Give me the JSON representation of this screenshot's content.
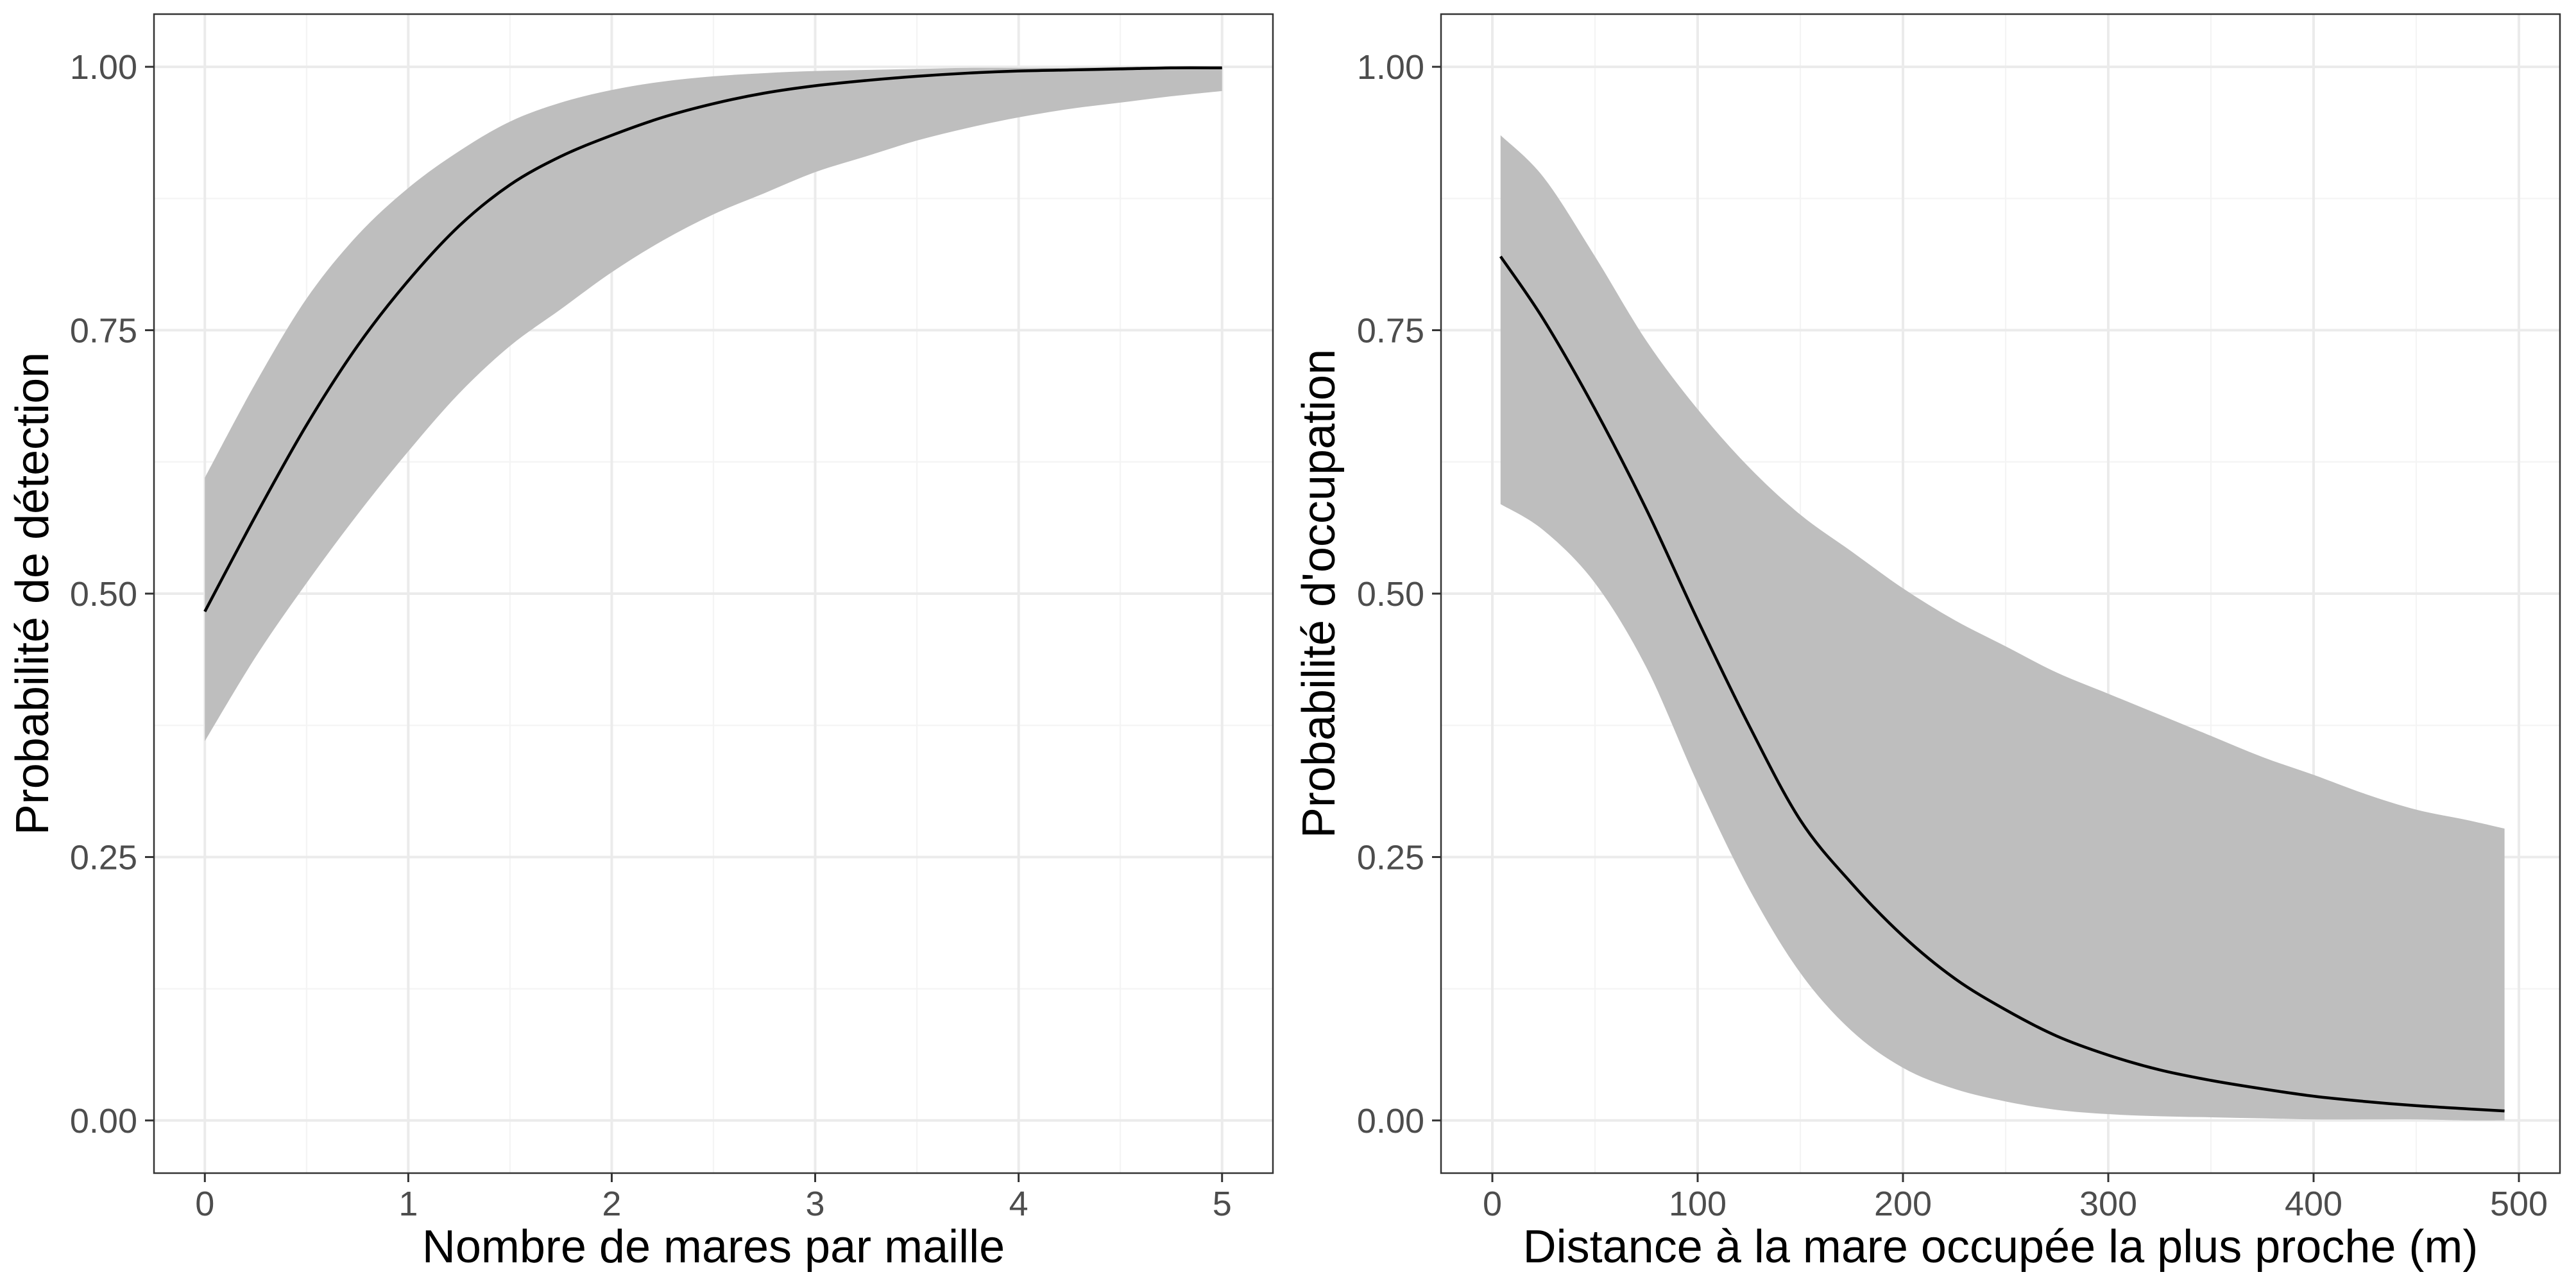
{
  "colors": {
    "background": "#ffffff",
    "panel_border": "#333333",
    "grid_major": "#ebebeb",
    "grid_minor": "#f4f4f4",
    "ribbon": "#bebebe",
    "line": "#000000",
    "tick_text": "#4d4d4d"
  },
  "chart_data": [
    {
      "type": "line",
      "xlabel": "Nombre de mares par maille",
      "ylabel": "Probabilité de détection",
      "xlim": [
        -0.25,
        5.25
      ],
      "ylim": [
        -0.05,
        1.05
      ],
      "x_ticks": [
        0,
        1,
        2,
        3,
        4,
        5
      ],
      "x_tick_labels": [
        "0",
        "1",
        "2",
        "3",
        "4",
        "5"
      ],
      "y_ticks": [
        0,
        0.25,
        0.5,
        0.75,
        1
      ],
      "y_tick_labels": [
        "0.00",
        "0.25",
        "0.50",
        "0.75",
        "1.00"
      ],
      "grid": true,
      "series": [
        {
          "x": [
            0,
            0.25,
            0.5,
            0.75,
            1,
            1.25,
            1.5,
            1.75,
            2,
            2.25,
            2.5,
            2.75,
            3,
            3.25,
            3.5,
            3.75,
            4,
            4.25,
            4.5,
            4.75,
            5
          ],
          "values": [
            0.483,
            0.574,
            0.66,
            0.735,
            0.797,
            0.849,
            0.888,
            0.915,
            0.935,
            0.952,
            0.965,
            0.975,
            0.982,
            0.987,
            0.991,
            0.994,
            0.996,
            0.997,
            0.998,
            0.999,
            0.999
          ],
          "lower": [
            0.36,
            0.44,
            0.51,
            0.575,
            0.635,
            0.69,
            0.735,
            0.77,
            0.805,
            0.835,
            0.86,
            0.88,
            0.9,
            0.915,
            0.93,
            0.942,
            0.952,
            0.96,
            0.966,
            0.972,
            0.977
          ],
          "upper": [
            0.61,
            0.7,
            0.78,
            0.84,
            0.885,
            0.92,
            0.948,
            0.966,
            0.978,
            0.986,
            0.991,
            0.994,
            0.996,
            0.997,
            0.998,
            0.999,
            0.999,
            0.999,
            1.0,
            1.0,
            1.0
          ]
        }
      ]
    },
    {
      "type": "line",
      "xlabel": "Distance à la mare occupée la plus proche (m)",
      "ylabel": "Probabilité d'occupation",
      "xlim": [
        -25,
        520
      ],
      "ylim": [
        -0.05,
        1.05
      ],
      "x_ticks": [
        0,
        100,
        200,
        300,
        400,
        500
      ],
      "x_tick_labels": [
        "0",
        "100",
        "200",
        "300",
        "400",
        "500"
      ],
      "y_ticks": [
        0,
        0.25,
        0.5,
        0.75,
        1
      ],
      "y_tick_labels": [
        "0.00",
        "0.25",
        "0.50",
        "0.75",
        "1.00"
      ],
      "grid": true,
      "series": [
        {
          "x": [
            4,
            25,
            50,
            75,
            100,
            125,
            150,
            175,
            200,
            225,
            250,
            275,
            300,
            325,
            350,
            375,
            400,
            425,
            450,
            475,
            493
          ],
          "values": [
            0.82,
            0.76,
            0.675,
            0.58,
            0.475,
            0.375,
            0.285,
            0.225,
            0.175,
            0.135,
            0.105,
            0.08,
            0.062,
            0.048,
            0.038,
            0.03,
            0.023,
            0.018,
            0.014,
            0.011,
            0.009
          ],
          "lower": [
            0.585,
            0.56,
            0.51,
            0.43,
            0.32,
            0.22,
            0.14,
            0.085,
            0.05,
            0.03,
            0.018,
            0.01,
            0.006,
            0.004,
            0.003,
            0.002,
            0.001,
            0.001,
            0.001,
            0.0,
            0.0
          ],
          "upper": [
            0.935,
            0.895,
            0.82,
            0.74,
            0.675,
            0.62,
            0.575,
            0.54,
            0.505,
            0.475,
            0.45,
            0.425,
            0.405,
            0.385,
            0.365,
            0.345,
            0.328,
            0.31,
            0.295,
            0.285,
            0.277
          ]
        }
      ]
    }
  ]
}
